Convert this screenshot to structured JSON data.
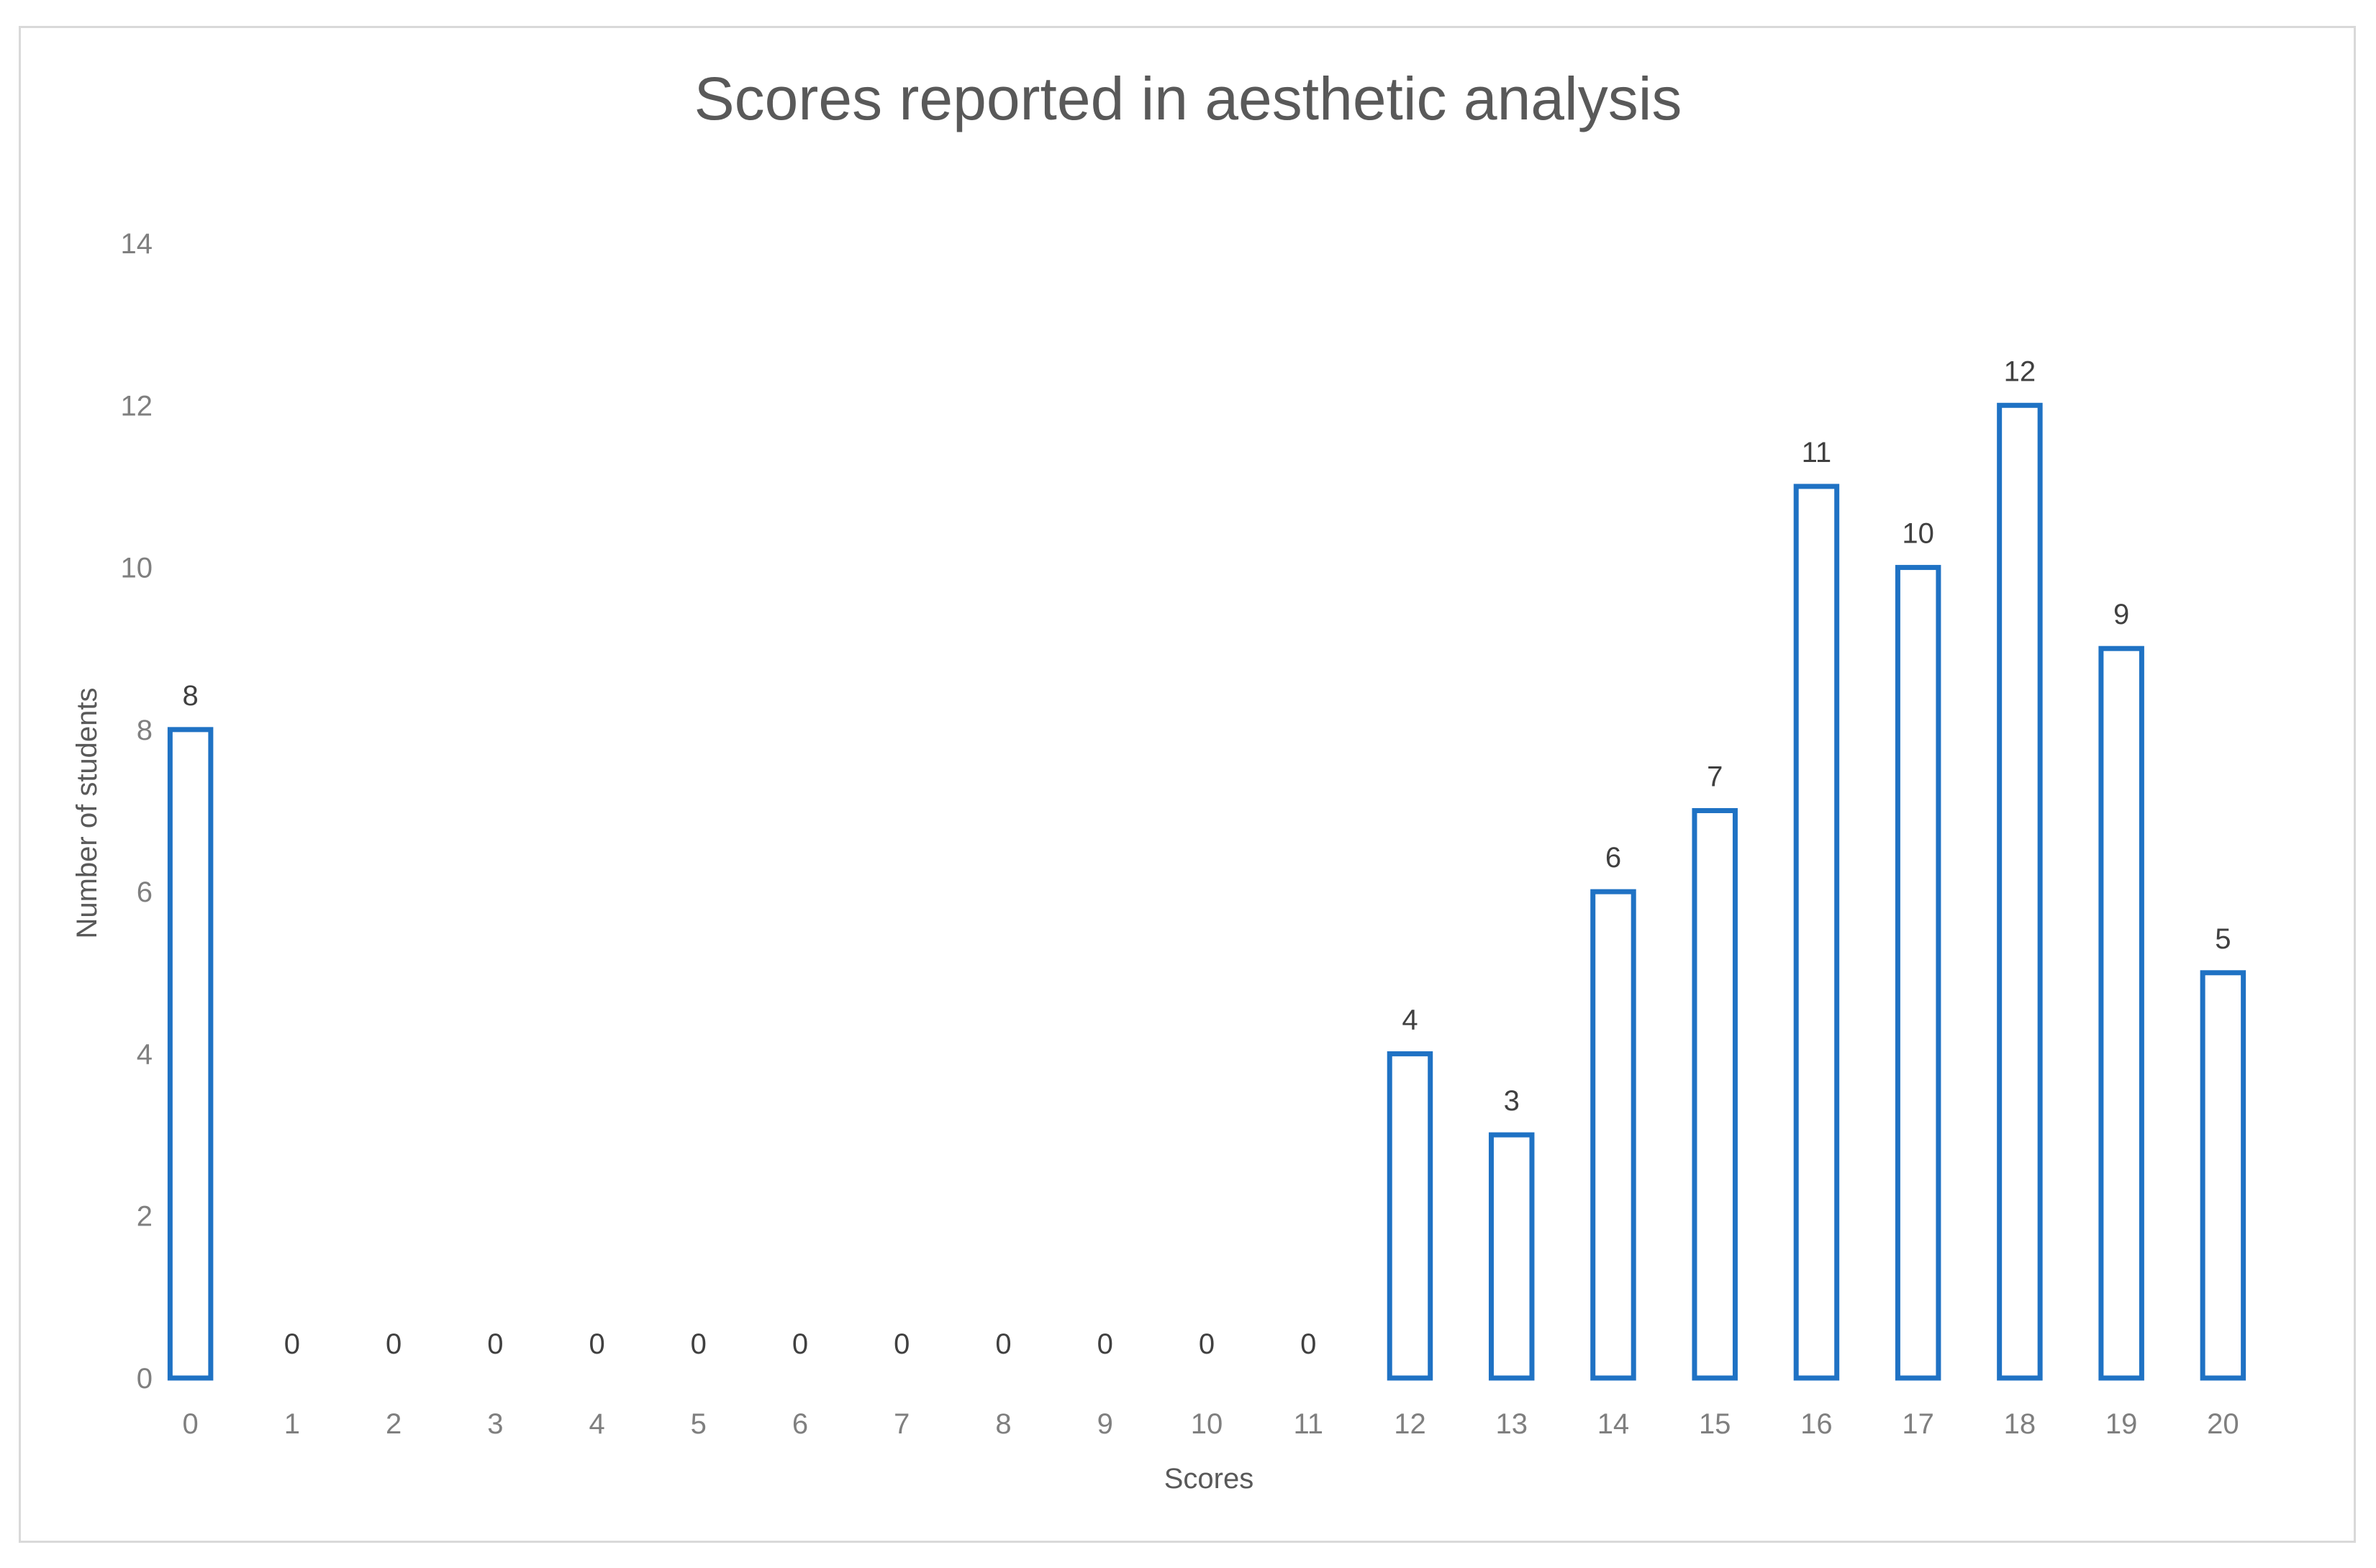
{
  "chart_data": {
    "type": "bar",
    "title": "Scores reported in aesthetic analysis",
    "xlabel": "Scores",
    "ylabel": "Number of students",
    "categories": [
      "0",
      "1",
      "2",
      "3",
      "4",
      "5",
      "6",
      "7",
      "8",
      "9",
      "10",
      "11",
      "12",
      "13",
      "14",
      "15",
      "16",
      "17",
      "18",
      "19",
      "20"
    ],
    "values": [
      8,
      0,
      0,
      0,
      0,
      0,
      0,
      0,
      0,
      0,
      0,
      0,
      4,
      3,
      6,
      7,
      11,
      10,
      12,
      9,
      5
    ],
    "ylim": [
      0,
      14
    ],
    "yticks": [
      "0",
      "2",
      "4",
      "6",
      "8",
      "10",
      "12",
      "14"
    ],
    "grid": false,
    "legend": "none",
    "data_labels": true,
    "bar_style": "outline",
    "colors": {
      "bar_outline": "#1f72c4",
      "bar_fill": "#ffffff",
      "title": "#595959",
      "tick": "#7f7f7f"
    }
  }
}
